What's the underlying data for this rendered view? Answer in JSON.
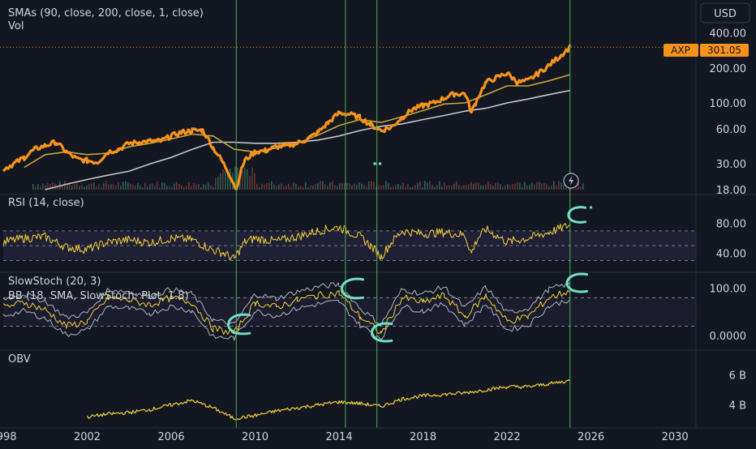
{
  "header": {
    "currency": "USD",
    "ticker": "AXP",
    "last_price": "301.05"
  },
  "chart_data": [
    {
      "type": "line",
      "title": "SMAs (90, close, 200, close, 1, close)",
      "subtitle": "Vol",
      "y_scale": "log",
      "ylim": [
        18,
        430
      ],
      "y_ticks": [
        "400.00",
        "200.00",
        "100.00",
        "60.00",
        "30.00",
        "18.00"
      ],
      "series": [
        {
          "x": [
            1998,
            1998.5,
            1999,
            1999.5,
            2000,
            2000.5,
            2001,
            2001.5,
            2002,
            2002.5,
            2003,
            2003.5,
            2004,
            2004.5,
            2005,
            2005.5,
            2006,
            2006.5,
            2007,
            2007.5,
            2008,
            2008.5,
            2009.1,
            2009.5,
            2010,
            2010.5,
            2011,
            2011.5,
            2012,
            2012.5,
            2013,
            2013.5,
            2014,
            2014.5,
            2015,
            2015.5,
            2016,
            2016.5,
            2017,
            2017.5,
            2018,
            2018.5,
            2019,
            2019.5,
            2020,
            2020.3,
            2020.5,
            2021,
            2021.5,
            2022,
            2022.5,
            2023,
            2023.5,
            2024,
            2024.5,
            2025
          ],
          "values": [
            27,
            30,
            34,
            40,
            43,
            46,
            38,
            33,
            32,
            31,
            38,
            40,
            45,
            46,
            47,
            47,
            52,
            56,
            58,
            58,
            41,
            30,
            18,
            32,
            38,
            39,
            42,
            43,
            45,
            49,
            56,
            68,
            82,
            80,
            75,
            65,
            58,
            62,
            75,
            88,
            95,
            100,
            110,
            120,
            120,
            82,
            100,
            150,
            165,
            180,
            150,
            155,
            180,
            210,
            250,
            301
          ],
          "color": "#f7931a"
        },
        {
          "x": [
            1999,
            2000,
            2001,
            2002,
            2003,
            2004,
            2005,
            2006,
            2007,
            2008,
            2009,
            2010,
            2011,
            2012,
            2013,
            2014,
            2015,
            2016,
            2017,
            2018,
            2019,
            2020,
            2021,
            2022,
            2023,
            2024,
            2025
          ],
          "values": [
            28,
            36,
            38,
            36,
            37,
            42,
            45,
            49,
            54,
            52,
            40,
            38,
            41,
            45,
            53,
            64,
            72,
            68,
            76,
            86,
            98,
            100,
            118,
            140,
            140,
            155,
            175
          ],
          "color": "#c8a53a"
        },
        {
          "x": [
            2000,
            2001,
            2002,
            2003,
            2004,
            2005,
            2006,
            2007,
            2008,
            2009,
            2010,
            2011,
            2012,
            2013,
            2014,
            2015,
            2016,
            2017,
            2018,
            2019,
            2020,
            2021,
            2022,
            2023,
            2024,
            2025
          ],
          "values": [
            18,
            20,
            22,
            24,
            26,
            30,
            34,
            40,
            46,
            46,
            45,
            45,
            46,
            48,
            52,
            58,
            63,
            66,
            72,
            78,
            85,
            90,
            100,
            108,
            118,
            128
          ],
          "color": "#c8c8c8"
        }
      ]
    },
    {
      "type": "line",
      "title": "RSI (14, close)",
      "ylim": [
        25,
        95
      ],
      "y_ticks": [
        "80.00",
        "40.00"
      ],
      "series": [
        {
          "x": [
            1998,
            1999,
            2000,
            2001,
            2002,
            2003,
            2004,
            2005,
            2006,
            2007,
            2008,
            2008.5,
            2009,
            2009.5,
            2010,
            2011,
            2012,
            2013,
            2014,
            2015,
            2015.5,
            2016,
            2016.5,
            2017,
            2018,
            2019,
            2020,
            2020.3,
            2020.6,
            2021,
            2022,
            2023,
            2024,
            2025
          ],
          "values": [
            55,
            60,
            62,
            48,
            45,
            55,
            58,
            54,
            60,
            58,
            44,
            40,
            32,
            55,
            60,
            56,
            62,
            70,
            75,
            62,
            50,
            35,
            55,
            70,
            66,
            68,
            64,
            40,
            60,
            72,
            55,
            60,
            68,
            78
          ],
          "color": "#f3d33b"
        }
      ]
    },
    {
      "type": "line",
      "title": "SlowStoch (20, 3)",
      "subtitle": "BB (18, SMA, SlowStoch: Plot, 1.8)",
      "ylim": [
        -10,
        120
      ],
      "y_ticks": [
        "100.00",
        "0.0000"
      ],
      "series": [
        {
          "x": [
            1998,
            1999,
            2000,
            2001,
            2002,
            2003,
            2004,
            2005,
            2006,
            2007,
            2008,
            2009,
            2010,
            2011,
            2012,
            2013,
            2014,
            2015,
            2016,
            2017,
            2018,
            2019,
            2020,
            2021,
            2022,
            2023,
            2024,
            2025
          ],
          "values": [
            60,
            70,
            55,
            20,
            30,
            80,
            75,
            65,
            80,
            70,
            15,
            5,
            70,
            60,
            75,
            85,
            90,
            40,
            5,
            80,
            70,
            85,
            40,
            85,
            30,
            40,
            80,
            95
          ],
          "color": "#f3d33b"
        }
      ]
    },
    {
      "type": "line",
      "title": "OBV",
      "ylim": [
        2.8,
        7.2
      ],
      "y_ticks": [
        "6 B",
        "4 B"
      ],
      "series": [
        {
          "x": [
            2002,
            2003,
            2004,
            2005,
            2006,
            2007,
            2008,
            2009,
            2010,
            2011,
            2012,
            2013,
            2014,
            2015,
            2016,
            2017,
            2018,
            2019,
            2020,
            2021,
            2022,
            2023,
            2024,
            2025
          ],
          "values": [
            3.2,
            3.4,
            3.5,
            3.7,
            4.0,
            4.3,
            3.8,
            3.1,
            3.3,
            3.6,
            3.8,
            4.0,
            4.2,
            4.1,
            3.9,
            4.4,
            4.6,
            4.7,
            4.8,
            5.0,
            5.2,
            5.2,
            5.4,
            5.6
          ],
          "color": "#f3d33b"
        }
      ]
    }
  ],
  "x_axis": {
    "labels": [
      "1998",
      "2002",
      "2006",
      "2010",
      "2014",
      "2018",
      "2022",
      "2026",
      "2030"
    ]
  }
}
